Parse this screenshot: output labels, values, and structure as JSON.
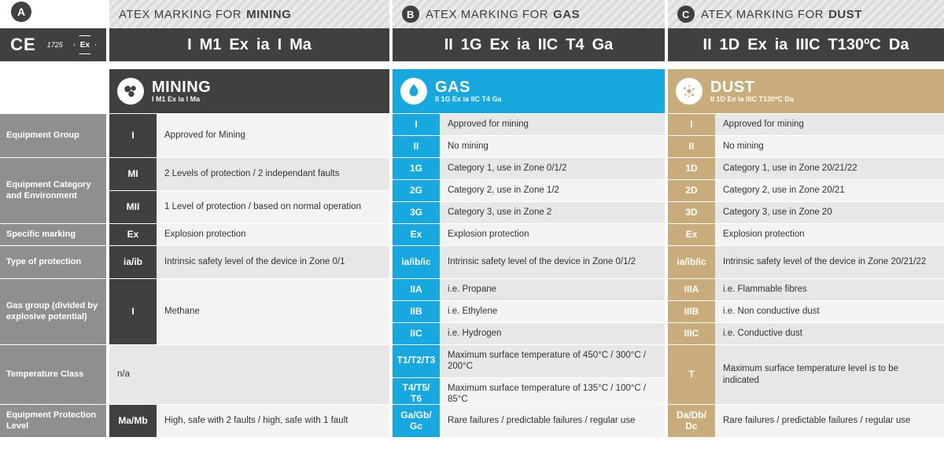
{
  "colors": {
    "dark": "#3f403f",
    "gas": "#17a8df",
    "dust": "#c9ac7b",
    "label": "#8e8f8e",
    "shadeA": "#e7e7e7",
    "shadeB": "#f3f3f3"
  },
  "badges": {
    "a": "A",
    "b": "B",
    "c": "C"
  },
  "ce": {
    "mark": "CE",
    "num": "1725",
    "ex": "Ex"
  },
  "caps": {
    "mining": {
      "pre": "ATEX MARKING FOR",
      "strong": "MINING"
    },
    "gas": {
      "pre": "ATEX MARKING FOR",
      "strong": "GAS"
    },
    "dust": {
      "pre": "ATEX MARKING FOR",
      "strong": "DUST"
    }
  },
  "codes": {
    "mining": [
      "I",
      "M1",
      "Ex",
      "ia",
      "I",
      "Ma"
    ],
    "gas": [
      "II",
      "1G",
      "Ex",
      "ia",
      "IIC",
      "T4",
      "Ga"
    ],
    "dust": [
      "II",
      "1D",
      "Ex",
      "ia",
      "IIIC",
      "T130ºC",
      "Da"
    ]
  },
  "heads": {
    "mining": {
      "title": "MINING",
      "sub": "I M1 Ex ia I Ma"
    },
    "gas": {
      "title": "GAS",
      "sub": "II 1G Ex ia IIC T4 Ga"
    },
    "dust": {
      "title": "DUST",
      "sub": "II 1D Ex ia IIIC T130ºC Da"
    }
  },
  "row_labels": {
    "equip_group": "Equipment Group",
    "equip_cat": "Equipment Category and Environment",
    "specific": "Specific marking",
    "type_prot": "Type of protection",
    "gas_group": "Gas group (divided by explosive potential)",
    "temp_class": "Temperature Class",
    "epl": "Equipment Protection Level"
  },
  "mining": {
    "group": [
      {
        "c": "I",
        "t": "Approved for Mining"
      }
    ],
    "cat": [
      {
        "c": "MI",
        "t": "2 Levels of protection / 2 independant faults"
      },
      {
        "c": "MII",
        "t": "1 Level of protection / based on normal operation"
      }
    ],
    "specific": [
      {
        "c": "Ex",
        "t": "Explosion protection"
      }
    ],
    "type": [
      {
        "c": "ia/ib",
        "t": "Intrinsic safety level of the device in Zone 0/1"
      }
    ],
    "gasgrp": [
      {
        "c": "I",
        "t": "Methane"
      }
    ],
    "temp": [
      {
        "c": "",
        "t": "n/a"
      }
    ],
    "epl": [
      {
        "c": "Ma/Mb",
        "t": "High, safe with 2 faults / high, safe with 1 fault"
      }
    ]
  },
  "gas": {
    "group": [
      {
        "c": "I",
        "t": "Approved for mining"
      },
      {
        "c": "II",
        "t": "No mining"
      }
    ],
    "cat": [
      {
        "c": "1G",
        "t": "Category 1, use in Zone 0/1/2"
      },
      {
        "c": "2G",
        "t": "Category 2, use in Zone 1/2"
      },
      {
        "c": "3G",
        "t": "Category 3, use in Zone 2"
      }
    ],
    "specific": [
      {
        "c": "Ex",
        "t": "Explosion protection"
      }
    ],
    "type": [
      {
        "c": "ia/ib/ic",
        "t": "Intrinsic safety level of the device in Zone 0/1/2"
      }
    ],
    "gasgrp": [
      {
        "c": "IIA",
        "t": "i.e. Propane"
      },
      {
        "c": "IIB",
        "t": "i.e. Ethylene"
      },
      {
        "c": "IIC",
        "t": "i.e. Hydrogen"
      }
    ],
    "temp": [
      {
        "c": "T1/T2/T3",
        "t": "Maximum surface temperature of 450°C / 300°C / 200°C"
      },
      {
        "c": "T4/T5/\nT6",
        "t": "Maximum surface temperature of 135°C / 100°C / 85°C"
      }
    ],
    "epl": [
      {
        "c": "Ga/Gb/\nGc",
        "t": "Rare failures / predictable failures / regular use"
      }
    ]
  },
  "dust": {
    "group": [
      {
        "c": "I",
        "t": "Approved for mining"
      },
      {
        "c": "II",
        "t": "No mining"
      }
    ],
    "cat": [
      {
        "c": "1D",
        "t": "Category 1, use in Zone 20/21/22"
      },
      {
        "c": "2D",
        "t": "Category 2, use in Zone 20/21"
      },
      {
        "c": "3D",
        "t": "Category 3, use in Zone 20"
      }
    ],
    "specific": [
      {
        "c": "Ex",
        "t": "Explosion protection"
      }
    ],
    "type": [
      {
        "c": "ia/ib/ic",
        "t": "Intrinsic safety level of the device in Zone 20/21/22"
      }
    ],
    "gasgrp": [
      {
        "c": "IIIA",
        "t": "i.e. Flammable fibres"
      },
      {
        "c": "IIIB",
        "t": "i.e. Non conductive dust"
      },
      {
        "c": "IIIC",
        "t": "i.e. Conductive dust"
      }
    ],
    "temp": [
      {
        "c": "T",
        "t": "Maximum surface temperature level is to be indicated"
      }
    ],
    "epl": [
      {
        "c": "Da/Db/\nDc",
        "t": "Rare failures / predictable failures / regular use"
      }
    ]
  },
  "row_heights": {
    "group": 56,
    "cat": 84,
    "specific": 28,
    "type": 42,
    "gasgrp": 84,
    "temp": 76,
    "epl": 42
  }
}
